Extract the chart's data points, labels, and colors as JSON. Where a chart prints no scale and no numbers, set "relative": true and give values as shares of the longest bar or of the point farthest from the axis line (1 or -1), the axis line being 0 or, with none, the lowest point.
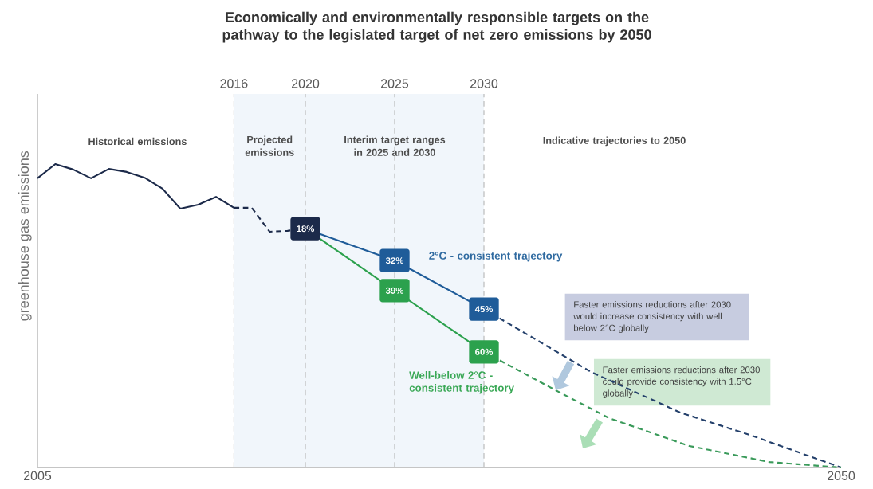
{
  "chart_data": {
    "type": "line",
    "title": "Economically and environmentally responsible targets on the pathway to the legislated target of net zero emissions by 2050",
    "ylabel": "greenhouse gas emissions",
    "relative": true,
    "xlim": [
      2005,
      2050
    ],
    "xticks": [
      2005,
      2050
    ],
    "x2lim": [
      2005,
      2050
    ],
    "x2ticks": [
      2016,
      2020,
      2025,
      2030
    ],
    "bands": [
      {
        "axis": "x",
        "from": 2016,
        "to": 2030,
        "color": "#f1f6fb"
      }
    ],
    "ref_lines": [
      {
        "axis": "x",
        "value": 2016,
        "color": "#b4b4b4",
        "line_style": "dashed"
      },
      {
        "axis": "x",
        "value": 2020,
        "color": "#b4b4b4",
        "line_style": "dashed"
      },
      {
        "axis": "x",
        "value": 2025,
        "color": "#b4b4b4",
        "line_style": "dashed"
      },
      {
        "axis": "x",
        "value": 2030,
        "color": "#b4b4b4",
        "line_style": "dashed"
      }
    ],
    "annotations": [
      "Historical emissions",
      "Projected emissions",
      "Interim target ranges in 2025 and 2030",
      "Indicative trajectories to 2050",
      "Faster emissions reductions after 2030 would increase consistency with well below 2°C globally",
      "Faster emissions reductions after 2030 could provide consistency with 1.5°C globally",
      {
        "text": "18%",
        "x": 2020,
        "y": 0.787
      },
      {
        "text": "32%",
        "x": 2025,
        "y": 0.682
      },
      {
        "text": "45%",
        "x": 2030,
        "y": 0.522
      },
      {
        "text": "39%",
        "x": 2025,
        "y": 0.583
      },
      {
        "text": "60%",
        "x": 2030,
        "y": 0.381
      }
    ],
    "series": [
      {
        "color": "#1c2a4a",
        "line_style": "solid",
        "x": [
          2005,
          2006,
          2007,
          2008,
          2009,
          2010,
          2011,
          2012,
          2013,
          2014,
          2015,
          2016
        ],
        "values": [
          0.953,
          1,
          0.982,
          0.953,
          0.984,
          0.974,
          0.955,
          0.919,
          0.853,
          0.866,
          0.892,
          0.856
        ]
      },
      {
        "color": "#1c2a4a",
        "line_style": "dashed",
        "x": [
          2016,
          2017,
          2018,
          2019,
          2020
        ],
        "values": [
          0.856,
          0.856,
          0.777,
          0.78,
          0.787
        ]
      },
      {
        "name": "2°C - consistent trajectory",
        "color": "#1f5c99",
        "line_style": "solid",
        "x": [
          2020,
          2025,
          2030
        ],
        "values": [
          0.787,
          0.682,
          0.522
        ]
      },
      {
        "color": "#24406b",
        "line_style": "dashed",
        "x": [
          2030,
          2036,
          2041,
          2045,
          2050
        ],
        "values": [
          0.522,
          0.315,
          0.181,
          0.105,
          0
        ]
      },
      {
        "name": "Well-below 2°C -consistent trajectory",
        "color": "#2ca14d",
        "line_style": "solid",
        "x": [
          2020,
          2025,
          2030
        ],
        "values": [
          0.787,
          0.583,
          0.381
        ]
      },
      {
        "color": "#3a9a5a",
        "line_style": "dashed",
        "x": [
          2030,
          2034,
          2037,
          2041.5,
          2046,
          2050
        ],
        "values": [
          0.381,
          0.255,
          0.163,
          0.071,
          0.018,
          0
        ]
      }
    ]
  }
}
